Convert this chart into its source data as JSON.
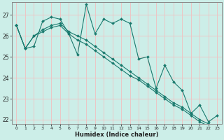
{
  "xlabel": "Humidex (Indice chaleur)",
  "line_color": "#1a7a6e",
  "bg_color": "#cceee8",
  "grid_color": "#f0c0c0",
  "lines": [
    [
      26.5,
      25.4,
      25.5,
      26.7,
      26.9,
      26.8,
      26.1,
      25.1,
      27.5,
      26.1,
      26.8,
      26.6,
      26.8,
      26.6,
      24.9,
      25.0,
      23.5,
      24.6,
      23.8,
      23.4,
      22.3,
      22.7,
      21.9,
      22.2
    ],
    [
      26.5,
      25.4,
      26.0,
      26.3,
      26.5,
      26.6,
      26.2,
      26.0,
      25.8,
      25.5,
      25.2,
      24.9,
      24.6,
      24.3,
      24.0,
      23.7,
      23.4,
      23.1,
      22.8,
      22.6,
      22.3,
      22.0,
      21.8,
      21.5
    ],
    [
      26.5,
      25.4,
      26.0,
      26.2,
      26.4,
      26.5,
      26.1,
      25.8,
      25.6,
      25.3,
      25.0,
      24.7,
      24.4,
      24.1,
      23.9,
      23.6,
      23.3,
      23.0,
      22.7,
      22.5,
      22.2,
      21.9,
      21.7,
      21.5
    ]
  ],
  "ylim": [
    21.8,
    27.6
  ],
  "xlim": [
    -0.5,
    23.5
  ],
  "yticks": [
    22,
    23,
    24,
    25,
    26,
    27
  ],
  "xticks": [
    0,
    1,
    2,
    3,
    4,
    5,
    6,
    7,
    8,
    9,
    10,
    11,
    12,
    13,
    14,
    15,
    16,
    17,
    18,
    19,
    20,
    21,
    22,
    23
  ]
}
